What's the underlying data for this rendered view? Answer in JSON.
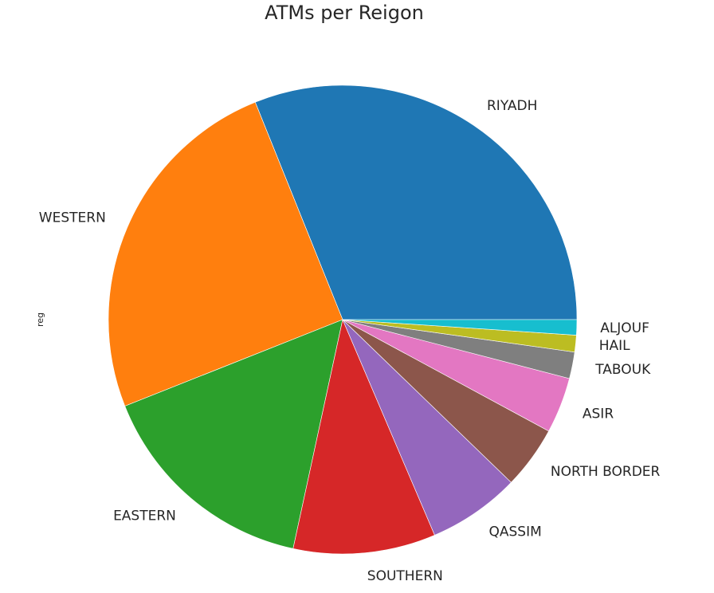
{
  "chart_data": {
    "type": "pie",
    "title": "ATMs per Reigon",
    "ylabel": "reg",
    "start_angle_deg": 0,
    "direction": "counterclockwise",
    "slices": [
      {
        "label": "RIYADH",
        "value": 32.3,
        "color": "#1f77b4"
      },
      {
        "label": "WESTERN",
        "value": 25.9,
        "color": "#ff7f0e"
      },
      {
        "label": "EASTERN",
        "value": 16.2,
        "color": "#2ca02c"
      },
      {
        "label": "SOUTHERN",
        "value": 10.2,
        "color": "#d62728"
      },
      {
        "label": "QASSIM",
        "value": 6.6,
        "color": "#9467bd"
      },
      {
        "label": "NORTH BORDER",
        "value": 4.5,
        "color": "#8c564b"
      },
      {
        "label": "ASIR",
        "value": 4.0,
        "color": "#e377c2"
      },
      {
        "label": "TABOUK",
        "value": 1.9,
        "color": "#7f7f7f"
      },
      {
        "label": "HAIL",
        "value": 1.2,
        "color": "#bcbd22"
      },
      {
        "label": "ALJOUF",
        "value": 1.1,
        "color": "#17becf"
      }
    ]
  }
}
